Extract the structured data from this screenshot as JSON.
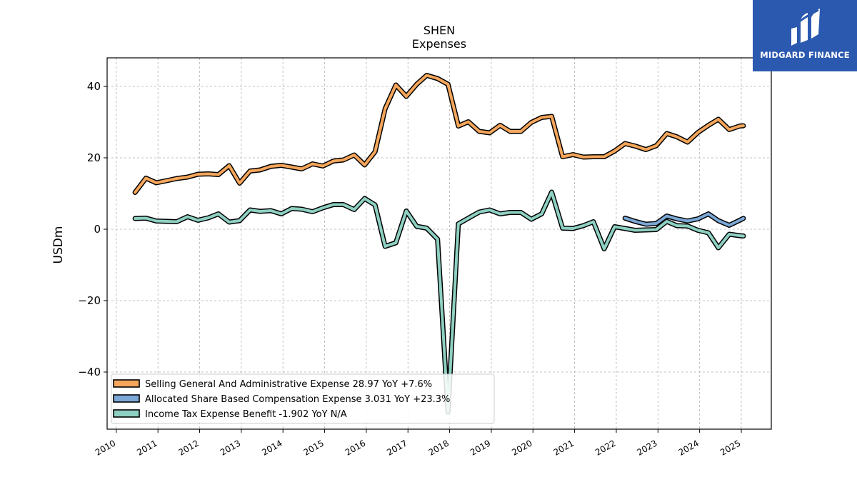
{
  "chart_data": {
    "type": "line",
    "title": "SHEN",
    "subtitle": "Expenses",
    "ylabel": "USDm",
    "xlabel": "",
    "ylim": [
      -56,
      48
    ],
    "xlim": [
      2009.78,
      2025.72
    ],
    "yticks": [
      -40,
      -20,
      0,
      20,
      40
    ],
    "ytick_labels": [
      "−40",
      "−20",
      "0",
      "20",
      "40"
    ],
    "xticks": [
      2010,
      2011,
      2012,
      2013,
      2014,
      2015,
      2016,
      2017,
      2018,
      2019,
      2020,
      2021,
      2022,
      2023,
      2024,
      2025
    ],
    "xtick_labels": [
      "2010",
      "2011",
      "2012",
      "2013",
      "2014",
      "2015",
      "2016",
      "2017",
      "2018",
      "2019",
      "2020",
      "2021",
      "2022",
      "2023",
      "2024",
      "2025"
    ],
    "grid": true,
    "legend_position": "lower-left",
    "series": [
      {
        "name": "Selling General And Administrative Expense",
        "legend": "Selling General And Administrative Expense  28.97 YoY +7.6%",
        "color": "#f5a65b",
        "x": [
          2010.45,
          2010.71,
          2010.96,
          2011.21,
          2011.45,
          2011.71,
          2011.96,
          2012.21,
          2012.45,
          2012.71,
          2012.96,
          2013.21,
          2013.45,
          2013.71,
          2013.96,
          2014.21,
          2014.45,
          2014.71,
          2014.96,
          2015.21,
          2015.45,
          2015.71,
          2015.96,
          2016.21,
          2016.45,
          2016.71,
          2016.96,
          2017.21,
          2017.45,
          2017.71,
          2017.96,
          2018.21,
          2018.45,
          2018.71,
          2018.96,
          2019.21,
          2019.45,
          2019.71,
          2019.96,
          2020.21,
          2020.45,
          2020.71,
          2020.96,
          2021.21,
          2021.45,
          2021.71,
          2021.96,
          2022.21,
          2022.45,
          2022.71,
          2022.96,
          2023.21,
          2023.45,
          2023.71,
          2023.96,
          2024.21,
          2024.45,
          2024.71,
          2024.96,
          2025.05
        ],
        "y": [
          10.3,
          14.3,
          13.0,
          13.6,
          14.2,
          14.6,
          15.4,
          15.5,
          15.3,
          17.8,
          12.9,
          16.3,
          16.6,
          17.6,
          17.9,
          17.4,
          16.9,
          18.3,
          17.7,
          19.1,
          19.4,
          20.8,
          18.0,
          21.7,
          33.7,
          40.4,
          37.2,
          40.6,
          43.1,
          42.2,
          40.6,
          28.9,
          30.1,
          27.4,
          27.0,
          29.1,
          27.4,
          27.4,
          29.9,
          31.3,
          31.6,
          20.3,
          20.9,
          20.2,
          20.3,
          20.3,
          21.9,
          24.0,
          23.3,
          22.3,
          23.4,
          26.8,
          25.9,
          24.4,
          27.1,
          29.1,
          30.8,
          27.9,
          28.9,
          28.97
        ]
      },
      {
        "name": "Allocated Share Based Compensation Expense",
        "legend": "Allocated Share Based Compensation Expense  3.031 YoY +23.3%",
        "color": "#7ba7d6",
        "x": [
          2022.21,
          2022.45,
          2022.71,
          2022.96,
          2023.21,
          2023.45,
          2023.71,
          2023.96,
          2024.21,
          2024.45,
          2024.71,
          2024.96,
          2025.05
        ],
        "y": [
          3.1,
          2.2,
          1.4,
          1.6,
          3.7,
          2.9,
          2.3,
          2.9,
          4.3,
          2.4,
          1.1,
          2.5,
          3.031
        ]
      },
      {
        "name": "Income Tax Expense Benefit",
        "legend": "Income Tax Expense Benefit  -1.902 YoY N/A",
        "color": "#8ed0c2",
        "x": [
          2010.45,
          2010.71,
          2010.96,
          2011.21,
          2011.45,
          2011.71,
          2011.96,
          2012.21,
          2012.45,
          2012.71,
          2012.96,
          2013.21,
          2013.45,
          2013.71,
          2013.96,
          2014.21,
          2014.45,
          2014.71,
          2014.96,
          2015.21,
          2015.45,
          2015.71,
          2015.96,
          2016.21,
          2016.45,
          2016.71,
          2016.96,
          2017.21,
          2017.45,
          2017.71,
          2017.96,
          2018.21,
          2018.45,
          2018.71,
          2018.96,
          2019.21,
          2019.45,
          2019.71,
          2019.96,
          2020.21,
          2020.45,
          2020.71,
          2020.96,
          2021.21,
          2021.45,
          2021.71,
          2021.96,
          2022.21,
          2022.45,
          2022.71,
          2022.96,
          2023.21,
          2023.45,
          2023.71,
          2023.96,
          2024.21,
          2024.45,
          2024.71,
          2024.96,
          2025.05
        ],
        "y": [
          3.0,
          3.1,
          2.3,
          2.2,
          2.1,
          3.5,
          2.5,
          3.2,
          4.3,
          2.0,
          2.4,
          5.4,
          5.0,
          5.2,
          4.3,
          5.8,
          5.6,
          4.9,
          6.0,
          6.9,
          6.9,
          5.5,
          8.6,
          6.8,
          -4.8,
          -3.8,
          5.1,
          0.8,
          0.3,
          -2.8,
          -51.2,
          1.5,
          3.1,
          4.8,
          5.4,
          4.3,
          4.7,
          4.7,
          2.8,
          4.3,
          10.4,
          0.3,
          0.2,
          1.0,
          2.1,
          -5.5,
          0.7,
          0.2,
          -0.3,
          -0.2,
          -0.1,
          2.2,
          1.0,
          0.9,
          -0.3,
          -1.0,
          -5.2,
          -1.4,
          -1.8,
          -1.902
        ]
      }
    ]
  },
  "logo": {
    "text": "MIDGARD FINANCE",
    "background": "#2b59b0"
  }
}
